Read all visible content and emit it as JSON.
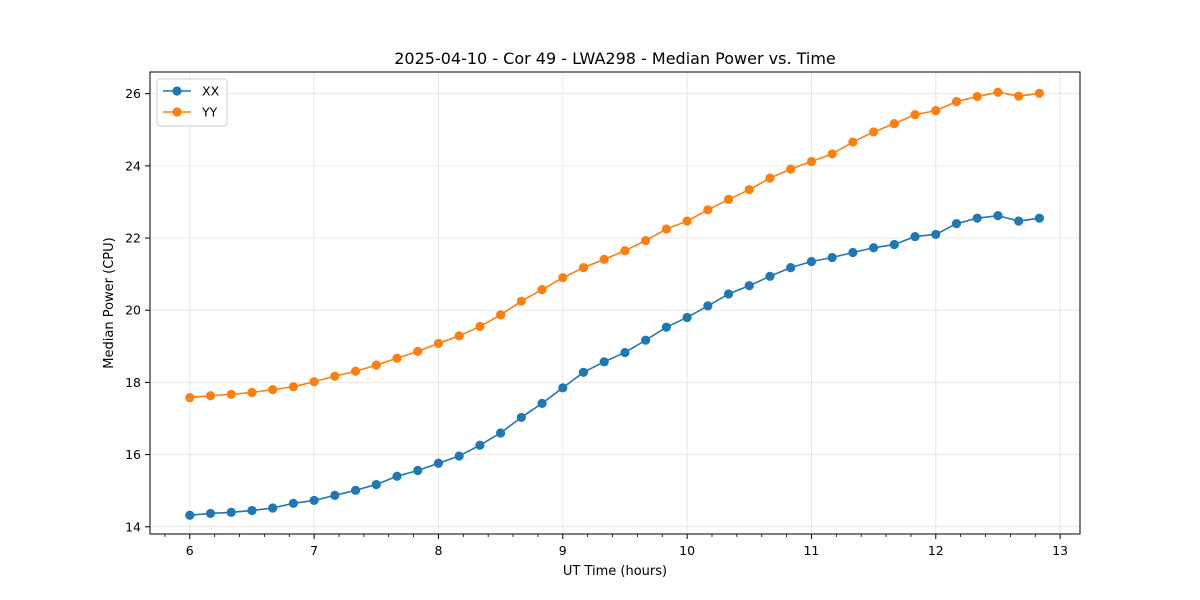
{
  "chart_data": {
    "type": "line",
    "title": "2025-04-10 - Cor 49 - LWA298 - Median Power vs. Time",
    "xlabel": "UT Time (hours)",
    "ylabel": "Median Power (CPU)",
    "xlim": [
      5.68,
      13.16
    ],
    "ylim": [
      13.8,
      26.6
    ],
    "xticks": [
      6,
      7,
      8,
      9,
      10,
      11,
      12,
      13
    ],
    "yticks": [
      14,
      16,
      18,
      20,
      22,
      24,
      26
    ],
    "grid": true,
    "legend_position": "top-left",
    "x": [
      6.0,
      6.1667,
      6.3333,
      6.5,
      6.6667,
      6.8333,
      7.0,
      7.1667,
      7.3333,
      7.5,
      7.6667,
      7.8333,
      8.0,
      8.1667,
      8.3333,
      8.5,
      8.6667,
      8.8333,
      9.0,
      9.1667,
      9.3333,
      9.5,
      9.6667,
      9.8333,
      10.0,
      10.1667,
      10.3333,
      10.5,
      10.6667,
      10.8333,
      11.0,
      11.1667,
      11.3333,
      11.5,
      11.6667,
      11.8333,
      12.0,
      12.1667,
      12.3333,
      12.5,
      12.6667,
      12.8333
    ],
    "series": [
      {
        "name": "XX",
        "color": "#1f77b4",
        "values": [
          14.32,
          14.37,
          14.4,
          14.45,
          14.52,
          14.65,
          14.73,
          14.87,
          15.01,
          15.17,
          15.4,
          15.56,
          15.76,
          15.96,
          16.26,
          16.6,
          17.03,
          17.42,
          17.85,
          18.28,
          18.57,
          18.83,
          19.17,
          19.53,
          19.8,
          20.12,
          20.45,
          20.68,
          20.94,
          21.18,
          21.35,
          21.46,
          21.6,
          21.73,
          21.82,
          22.04,
          22.1,
          22.4,
          22.55,
          22.62,
          22.47,
          22.55
        ]
      },
      {
        "name": "YY",
        "color": "#ff7f0e",
        "values": [
          17.58,
          17.63,
          17.67,
          17.72,
          17.8,
          17.88,
          18.02,
          18.17,
          18.31,
          18.48,
          18.67,
          18.86,
          19.08,
          19.29,
          19.55,
          19.87,
          20.25,
          20.57,
          20.9,
          21.18,
          21.41,
          21.65,
          21.93,
          22.25,
          22.47,
          22.78,
          23.07,
          23.34,
          23.66,
          23.91,
          24.12,
          24.33,
          24.66,
          24.94,
          25.17,
          25.42,
          25.53,
          25.78,
          25.92,
          26.04,
          25.93,
          26.01
        ]
      }
    ]
  }
}
